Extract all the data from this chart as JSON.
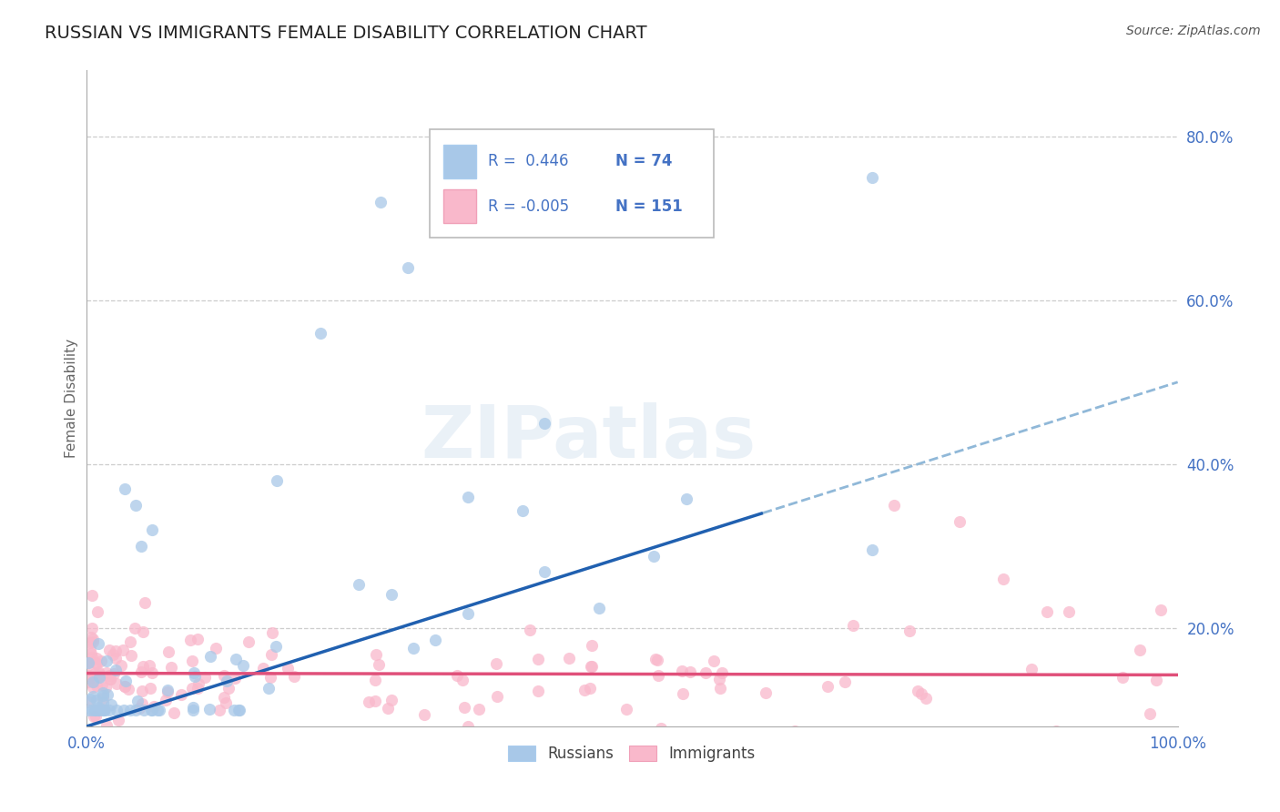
{
  "title": "RUSSIAN VS IMMIGRANTS FEMALE DISABILITY CORRELATION CHART",
  "source": "Source: ZipAtlas.com",
  "ylabel": "Female Disability",
  "xlim": [
    0.0,
    1.0
  ],
  "ylim": [
    0.08,
    0.88
  ],
  "yticks": [
    0.2,
    0.4,
    0.6,
    0.8
  ],
  "ytick_labels": [
    "20.0%",
    "40.0%",
    "60.0%",
    "80.0%"
  ],
  "xtick_labels": [
    "0.0%",
    "100.0%"
  ],
  "russian_R": 0.446,
  "russian_N": 74,
  "immigrant_R": -0.005,
  "immigrant_N": 151,
  "russian_color": "#a8c8e8",
  "immigrant_color": "#f9b8cb",
  "russian_line_color": "#2060b0",
  "immigrant_line_color": "#e0507a",
  "dashed_line_color": "#90b8d8",
  "watermark": "ZIPatlas",
  "background_color": "#ffffff",
  "grid_color": "#c8c8c8",
  "title_color": "#222222",
  "axis_label_color": "#4472c4",
  "legend_text_color": "#4472c4",
  "source_color": "#555555",
  "rus_line_slope": 0.42,
  "rus_line_intercept": 0.08,
  "imm_line_slope": -0.002,
  "imm_line_intercept": 0.145,
  "rus_line_solid_end": 0.62,
  "rus_line_dashed_start": 0.62
}
